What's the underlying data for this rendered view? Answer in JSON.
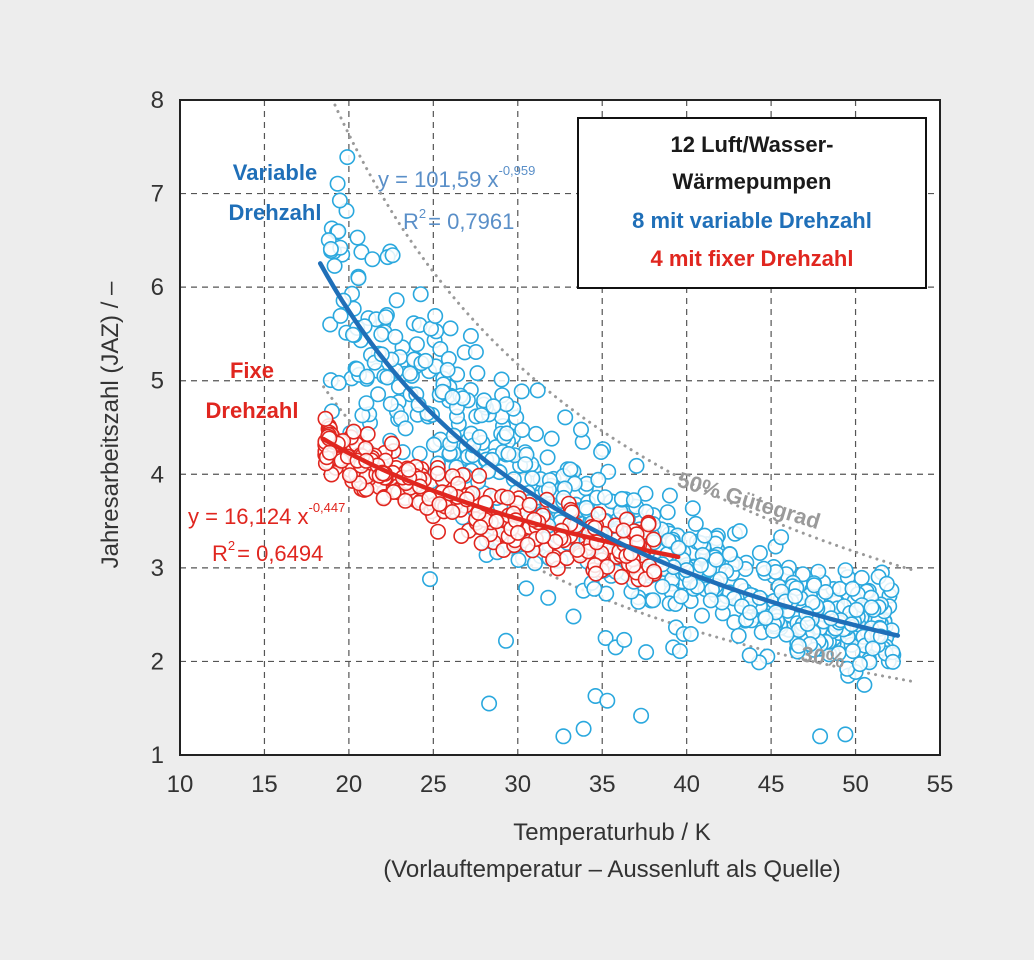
{
  "chart_data": {
    "type": "scatter",
    "xlabel": "Temperaturhub / K",
    "xlabel_sub": "(Vorlauftemperatur – Aussenluft als Quelle)",
    "ylabel": "Jahresarbeitszahl (JAZ) / –",
    "xlim": [
      10,
      55
    ],
    "ylim": [
      1,
      8
    ],
    "xticks": [
      "10",
      "15",
      "20",
      "25",
      "30",
      "35",
      "40",
      "45",
      "50",
      "55"
    ],
    "yticks": [
      "1",
      "2",
      "3",
      "4",
      "5",
      "6",
      "7",
      "8"
    ],
    "grid": true,
    "legend": {
      "placement": "top-right",
      "line1": "12 Luft/Wasser-",
      "line2": "Wärmepumpen",
      "line3": "8 mit variable Drehzahl",
      "line4": "4 mit fixer Drehzahl"
    },
    "colors": {
      "variable": "#2aa8de",
      "variable_fit": "#1f6fb8",
      "fixed": "#e0261f",
      "reference": "#9a9a9a"
    },
    "series": [
      {
        "name": "Variable Drehzahl",
        "label_line1": "Variable",
        "label_line2": "Drehzahl",
        "color": "#2aa8de",
        "fit": {
          "coef": 101.59,
          "exponent": -0.959,
          "x_range": [
            18.3,
            52.5
          ],
          "eq_prefix": "y = 101,59 x",
          "eq_exp": "-0,959",
          "r2_prefix": "R",
          "r2_sup": "2",
          "r2_value": "= 0,7961"
        },
        "outliers": [
          [
            24.8,
            2.88
          ],
          [
            28.3,
            1.55
          ],
          [
            29.3,
            2.22
          ],
          [
            30.5,
            2.78
          ],
          [
            31.8,
            2.68
          ],
          [
            32.7,
            1.2
          ],
          [
            33.3,
            2.48
          ],
          [
            33.9,
            1.28
          ],
          [
            34.6,
            1.63
          ],
          [
            35.2,
            2.25
          ],
          [
            35.3,
            1.58
          ],
          [
            35.8,
            2.15
          ],
          [
            36.3,
            2.23
          ],
          [
            37.3,
            1.42
          ],
          [
            37.6,
            2.1
          ],
          [
            39.2,
            2.15
          ],
          [
            39.6,
            2.11
          ],
          [
            47.9,
            1.2
          ],
          [
            49.4,
            1.22
          ]
        ]
      },
      {
        "name": "Fixe Drehzahl",
        "label_line1": "Fixe",
        "label_line2": "Drehzahl",
        "color": "#e0261f",
        "fit": {
          "coef": 16.124,
          "exponent": -0.447,
          "x_range": [
            18.5,
            39.5
          ],
          "eq_prefix": "y = 16,124 x",
          "eq_exp": "-0,447",
          "r2_prefix": "R",
          "r2_sup": "2",
          "r2_value": "= 0,6494"
        },
        "outliers": []
      }
    ],
    "reference_curves": [
      {
        "label": "50% Gütegrad",
        "coef": 135.0,
        "exponent": -0.959,
        "x_range": [
          18.5,
          53.5
        ]
      },
      {
        "label": "30%",
        "coef": 81.0,
        "exponent": -0.959,
        "x_range": [
          18.5,
          53.5
        ]
      }
    ]
  }
}
